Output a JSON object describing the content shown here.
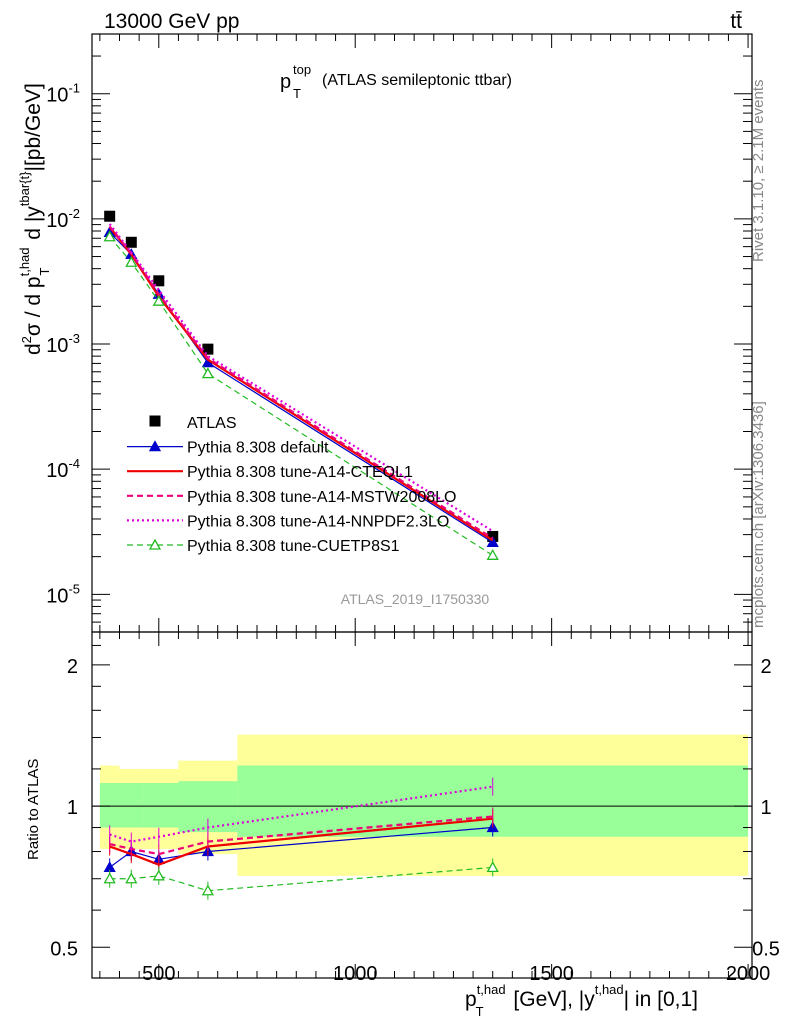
{
  "header": {
    "energy": "13000 GeV pp",
    "process": "tt̄",
    "title_main": "p",
    "title_sup": "top",
    "title_sub": "T",
    "title_suffix": "(ATLAS semileptonic ttbar)",
    "analysis_id": "ATLAS_2019_I1750330",
    "side_right_top": "Rivet 3.1.10, ≥ 2.1M events",
    "side_right_bottom": "mcplots.cern.ch [arXiv:1306.3436]"
  },
  "axes": {
    "ylabel_main": "d²σ / d p_T^{t,had} d |y^{tbar{t}}|[pb/GeV]",
    "ylabel_ratio": "Ratio to ATLAS",
    "xlabel": "p_T^{t,had} [GeV], |y^{t,had}| in [0,1]"
  },
  "chart_data": [
    {
      "type": "scatter",
      "panel": "main",
      "title": "p_T^top (ATLAS semileptonic ttbar)",
      "xlim": [
        330,
        2010
      ],
      "ylim": [
        5e-06,
        0.3
      ],
      "yscale": "log",
      "x_ticks": [
        500,
        1000,
        1500,
        2000
      ],
      "y_ticks": [
        "10^-5",
        "10^-4",
        "10^-3",
        "10^-2",
        "10^-1"
      ],
      "legend_position": "lower-left",
      "x": [
        375,
        430,
        500,
        625,
        1350
      ],
      "series": [
        {
          "name": "ATLAS",
          "color": "#000000",
          "style": "data",
          "values": [
            0.0105,
            0.0065,
            0.0032,
            0.00091,
            2.9e-05
          ]
        },
        {
          "name": "Pythia 8.308 default",
          "color": "#0000cc",
          "style": "solid-triangle",
          "values": [
            0.0078,
            0.0052,
            0.0025,
            0.00071,
            2.6e-05
          ]
        },
        {
          "name": "Pythia 8.308 tune-A14-CTEQL1",
          "color": "#ee0000",
          "style": "solid",
          "values": [
            0.0086,
            0.0052,
            0.0024,
            0.00075,
            2.7e-05
          ]
        },
        {
          "name": "Pythia 8.308 tune-A14-MSTW2008LO",
          "color": "#ee0077",
          "style": "dashed",
          "values": [
            0.0087,
            0.0053,
            0.0025,
            0.00077,
            2.8e-05
          ]
        },
        {
          "name": "Pythia 8.308 tune-A14-NNPDF2.3LO",
          "color": "#dd00dd",
          "style": "dotted",
          "values": [
            0.0091,
            0.0054,
            0.0027,
            0.0008,
            3.2e-05
          ]
        },
        {
          "name": "Pythia 8.308 tune-CUETP8S1",
          "color": "#22bb22",
          "style": "dashed-open-triangle",
          "values": [
            0.0072,
            0.0045,
            0.0022,
            0.00058,
            2.05e-05
          ]
        }
      ]
    },
    {
      "type": "line",
      "panel": "ratio",
      "xlim": [
        330,
        2010
      ],
      "ylim": [
        0.43,
        2.35
      ],
      "yscale": "log",
      "y_ticks": [
        0.5,
        1,
        2
      ],
      "x": [
        375,
        430,
        500,
        625,
        1350
      ],
      "bands": [
        {
          "xmin": 350,
          "xmax": 400,
          "inner": [
            0.9,
            1.12
          ],
          "outer": [
            0.81,
            1.22
          ]
        },
        {
          "xmin": 400,
          "xmax": 460,
          "inner": [
            0.9,
            1.12
          ],
          "outer": [
            0.81,
            1.2
          ]
        },
        {
          "xmin": 460,
          "xmax": 550,
          "inner": [
            0.9,
            1.12
          ],
          "outer": [
            0.81,
            1.2
          ]
        },
        {
          "xmin": 550,
          "xmax": 700,
          "inner": [
            0.88,
            1.13
          ],
          "outer": [
            0.79,
            1.25
          ]
        },
        {
          "xmin": 700,
          "xmax": 2000,
          "inner": [
            0.86,
            1.22
          ],
          "outer": [
            0.71,
            1.42
          ]
        }
      ],
      "series": [
        {
          "name": "Pythia 8.308 default",
          "color": "#0000cc",
          "values": [
            0.74,
            0.8,
            0.77,
            0.8,
            0.9
          ]
        },
        {
          "name": "Pythia 8.308 tune-A14-CTEQL1",
          "color": "#ee0000",
          "values": [
            0.82,
            0.79,
            0.75,
            0.82,
            0.94
          ]
        },
        {
          "name": "Pythia 8.308 tune-A14-MSTW2008LO",
          "color": "#ee0077",
          "values": [
            0.83,
            0.81,
            0.79,
            0.84,
            0.95
          ]
        },
        {
          "name": "Pythia 8.308 tune-A14-NNPDF2.3LO",
          "color": "#dd00dd",
          "values": [
            0.87,
            0.84,
            0.86,
            0.9,
            1.1
          ]
        },
        {
          "name": "Pythia 8.308 tune-CUETP8S1",
          "color": "#22bb22",
          "values": [
            0.7,
            0.7,
            0.71,
            0.66,
            0.74
          ]
        }
      ]
    }
  ],
  "colors": {
    "band_inner": "#99ff99",
    "band_outer": "#ffff99"
  }
}
